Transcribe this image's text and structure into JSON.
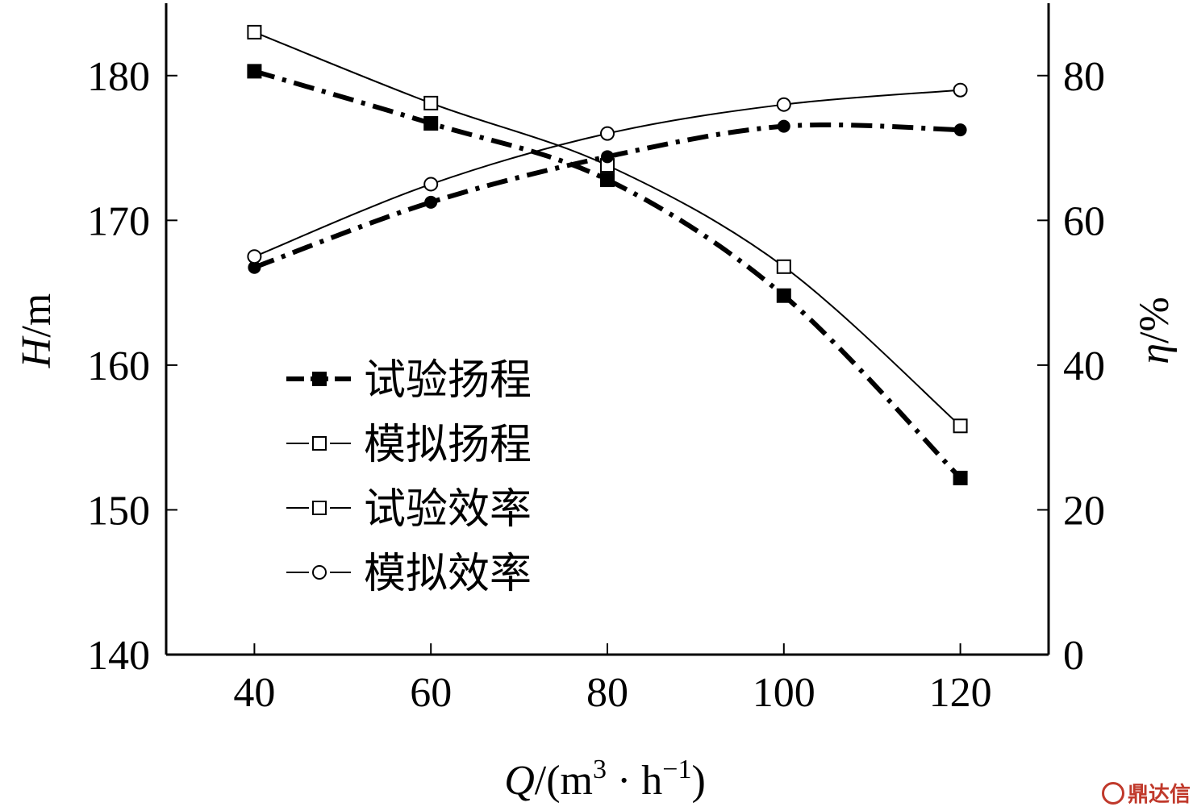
{
  "chart_data": {
    "type": "line",
    "x": [
      40,
      60,
      80,
      100,
      120
    ],
    "xlabel_italic": "Q",
    "xlabel_rest": "/(m",
    "xlabel_sup1": "3",
    "xlabel_mid": " · h",
    "xlabel_sup2": "−1",
    "xlabel_end": ")",
    "ylabel_italic": "H",
    "ylabel_rest": "/m",
    "y2label_italic": "η",
    "y2label_rest": "/%",
    "xlim": [
      30,
      130
    ],
    "ylim": [
      140,
      185
    ],
    "y2lim": [
      0,
      90
    ],
    "xticks": [
      40,
      60,
      80,
      100,
      120
    ],
    "yticks": [
      140,
      150,
      160,
      170,
      180
    ],
    "y2ticks": [
      0,
      20,
      40,
      60,
      80
    ],
    "grid": false,
    "legend_position": "center-left",
    "series": [
      {
        "name": "试验扬程",
        "axis": "left",
        "marker": "filled-square",
        "line": "dashdot-thick",
        "values": [
          180.3,
          176.7,
          172.8,
          164.8,
          152.2
        ]
      },
      {
        "name": "模拟扬程",
        "axis": "left",
        "marker": "open-square",
        "line": "solid-thin",
        "values": [
          183.0,
          178.1,
          173.8,
          166.8,
          155.8
        ]
      },
      {
        "name": "试验效率",
        "axis": "right",
        "marker": "filled-circle",
        "line": "dashdot-thick",
        "values": [
          53.5,
          62.5,
          68.8,
          73.0,
          72.5
        ]
      },
      {
        "name": "模拟效率",
        "axis": "right",
        "marker": "open-circle",
        "line": "solid-thin",
        "values": [
          55.0,
          65.0,
          72.0,
          76.0,
          78.0
        ]
      }
    ]
  },
  "watermark": "鼎达信"
}
